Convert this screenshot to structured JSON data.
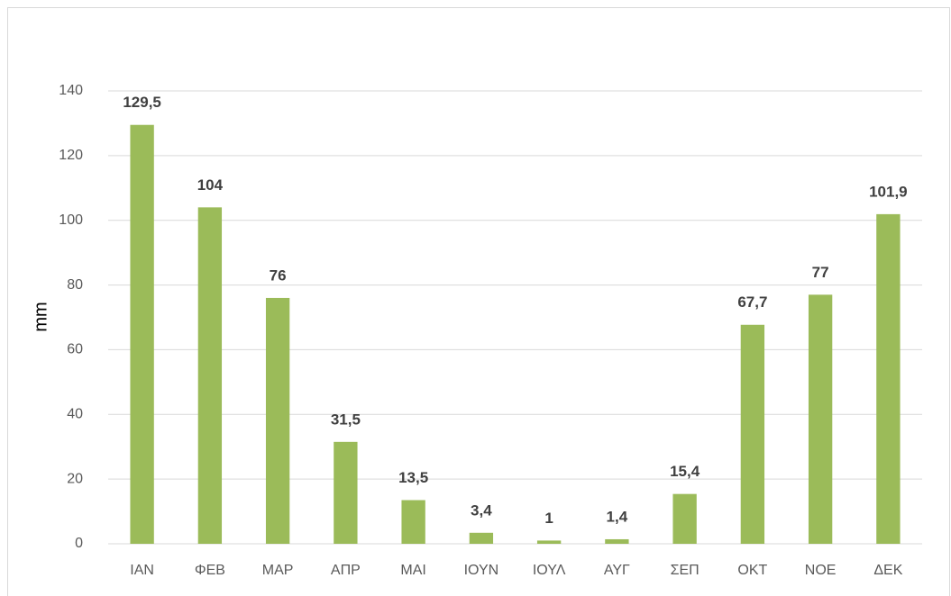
{
  "chart_data": {
    "type": "bar",
    "y_label": "mm",
    "categories": [
      "ΙΑΝ",
      "ΦΕΒ",
      "ΜΑΡ",
      "ΑΠΡ",
      "ΜΑΙ",
      "ΙΟΥΝ",
      "ΙΟΥΛ",
      "ΑΥΓ",
      "ΣΕΠ",
      "ΟΚΤ",
      "ΝΟΕ",
      "ΔΕΚ"
    ],
    "values": [
      129.5,
      104,
      76,
      31.5,
      13.5,
      3.4,
      1,
      1.4,
      15.4,
      67.7,
      77,
      101.9
    ],
    "value_labels": [
      "129,5",
      "104",
      "76",
      "31,5",
      "13,5",
      "3,4",
      "1",
      "1,4",
      "15,4",
      "67,7",
      "77",
      "101,9"
    ],
    "color": "#9bbb59",
    "ylim": [
      0,
      140
    ],
    "yticks": [
      0,
      20,
      40,
      60,
      80,
      100,
      120,
      140
    ],
    "grid": true
  }
}
